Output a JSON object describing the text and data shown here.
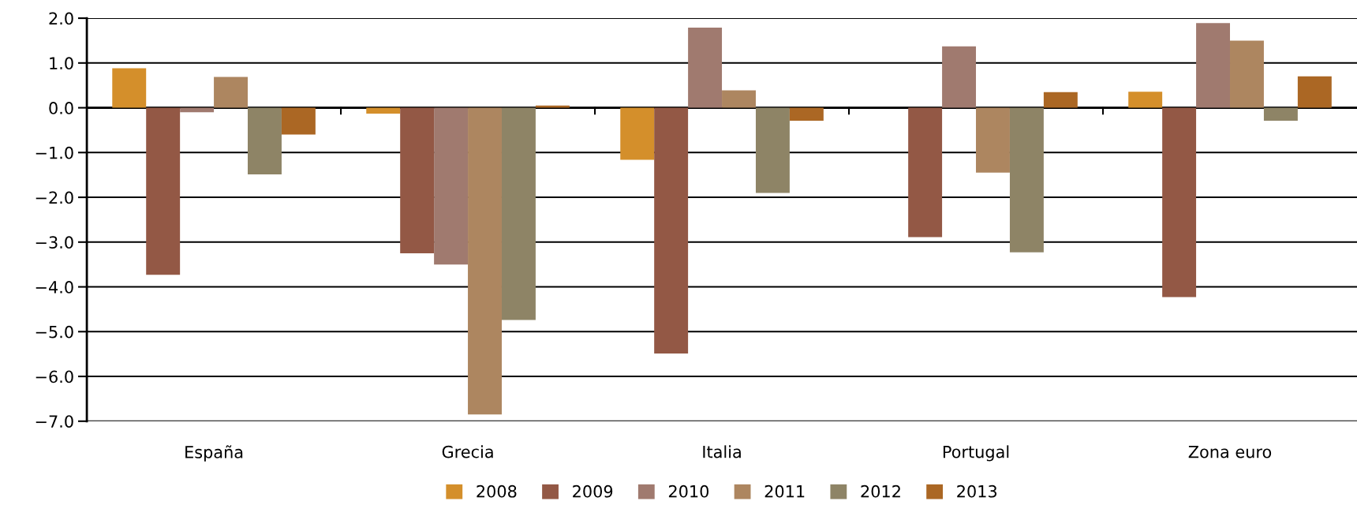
{
  "chart_data": {
    "type": "bar",
    "categories": [
      "España",
      "Grecia",
      "Italia",
      "Portugal",
      "Zona euro"
    ],
    "series": [
      {
        "name": "2008",
        "color": "#d48f2b",
        "values": [
          0.88,
          -0.13,
          -1.16,
          null,
          0.36
        ]
      },
      {
        "name": "2009",
        "color": "#935845",
        "values": [
          -3.73,
          -3.25,
          -5.49,
          -2.89,
          -4.23
        ]
      },
      {
        "name": "2010",
        "color": "#a07a6f",
        "values": [
          -0.1,
          -3.5,
          1.79,
          1.37,
          1.89
        ]
      },
      {
        "name": "2011",
        "color": "#ad8660",
        "values": [
          0.69,
          -6.85,
          0.39,
          -1.45,
          1.5
        ]
      },
      {
        "name": "2012",
        "color": "#8e8466",
        "values": [
          -1.49,
          -4.74,
          -1.9,
          -3.23,
          -0.29
        ]
      },
      {
        "name": "2013",
        "color": "#ab6724",
        "values": [
          -0.6,
          0.05,
          -0.29,
          0.35,
          0.7
        ]
      }
    ],
    "ylim": [
      -7.0,
      2.0
    ],
    "yticks": [
      {
        "value": 2.0,
        "label": "2.0"
      },
      {
        "value": 1.0,
        "label": "1.0"
      },
      {
        "value": 0.0,
        "label": "0.0"
      },
      {
        "value": -1.0,
        "label": "−1.0"
      },
      {
        "value": -2.0,
        "label": "−2.0"
      },
      {
        "value": -3.0,
        "label": "−3.0"
      },
      {
        "value": -4.0,
        "label": "−4.0"
      },
      {
        "value": -5.0,
        "label": "−5.0"
      },
      {
        "value": -6.0,
        "label": "−6.0"
      },
      {
        "value": -7.0,
        "label": "−7.0"
      }
    ],
    "grid": "y",
    "legend": "bottom"
  }
}
